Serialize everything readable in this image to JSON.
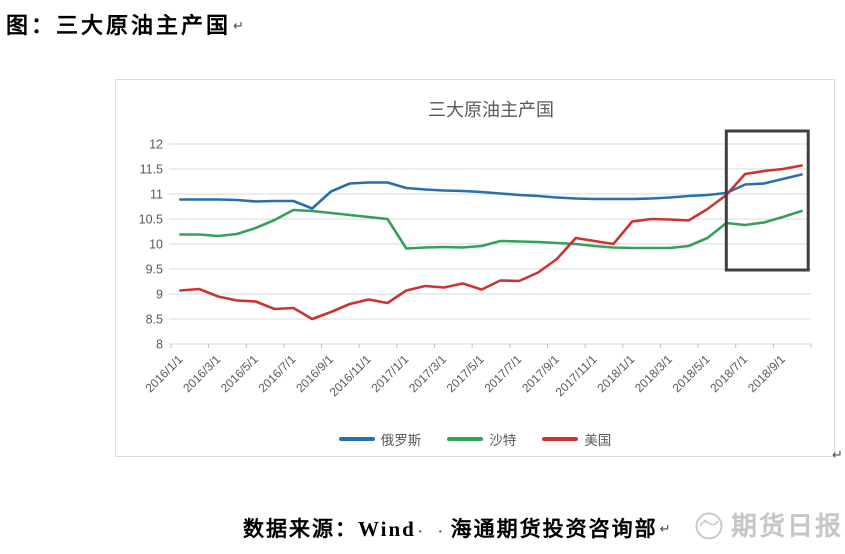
{
  "document": {
    "title": "图：三大原油主产国",
    "paragraph_mark": "↵",
    "source_prefix": "数据来源：Wind",
    "space_dots": "· ·",
    "source_suffix": "海通期货投资咨询部"
  },
  "watermark": {
    "name": "期货日报",
    "icon": "futures-daily-logo",
    "color": "#c6c6c6"
  },
  "chart_data": {
    "type": "line",
    "title": "三大原油主产国",
    "title_color": "#595959",
    "grid": true,
    "grid_color": "#d9d9d9",
    "axis_text_color": "#595959",
    "legend_position": "bottom",
    "ylim": [
      8,
      12
    ],
    "y_ticks": [
      8,
      8.5,
      9,
      9.5,
      10,
      10.5,
      11,
      11.5,
      12
    ],
    "x": [
      "2016/1/1",
      "2016/2/1",
      "2016/3/1",
      "2016/4/1",
      "2016/5/1",
      "2016/6/1",
      "2016/7/1",
      "2016/8/1",
      "2016/9/1",
      "2016/10/1",
      "2016/11/1",
      "2016/12/1",
      "2017/1/1",
      "2017/2/1",
      "2017/3/1",
      "2017/4/1",
      "2017/5/1",
      "2017/6/1",
      "2017/7/1",
      "2017/8/1",
      "2017/9/1",
      "2017/10/1",
      "2017/11/1",
      "2017/12/1",
      "2018/1/1",
      "2018/2/1",
      "2018/3/1",
      "2018/4/1",
      "2018/5/1",
      "2018/6/1",
      "2018/7/1",
      "2018/8/1",
      "2018/9/1",
      "2018/10/1"
    ],
    "x_tick_labels": [
      "2016/1/1",
      "2016/3/1",
      "2016/5/1",
      "2016/7/1",
      "2016/9/1",
      "2016/11/1",
      "2017/1/1",
      "2017/3/1",
      "2017/5/1",
      "2017/7/1",
      "2017/9/1",
      "2017/11/1",
      "2018/1/1",
      "2018/3/1",
      "2018/5/1",
      "2018/7/1",
      "2018/9/1"
    ],
    "series": [
      {
        "key": "russia",
        "name": "俄罗斯",
        "color": "#2a6fac",
        "values": [
          10.89,
          10.89,
          10.89,
          10.88,
          10.85,
          10.86,
          10.86,
          10.71,
          11.05,
          11.21,
          11.23,
          11.23,
          11.12,
          11.09,
          11.07,
          11.06,
          11.04,
          11.01,
          10.98,
          10.96,
          10.93,
          10.91,
          10.9,
          10.9,
          10.9,
          10.91,
          10.93,
          10.96,
          10.98,
          11.02,
          11.19,
          11.21,
          11.3,
          11.39
        ]
      },
      {
        "key": "saudi",
        "name": "沙特",
        "color": "#33a157",
        "values": [
          10.19,
          10.19,
          10.16,
          10.2,
          10.32,
          10.48,
          10.68,
          10.66,
          10.62,
          10.58,
          10.54,
          10.5,
          9.91,
          9.93,
          9.94,
          9.93,
          9.96,
          10.06,
          10.05,
          10.04,
          10.02,
          10.0,
          9.96,
          9.93,
          9.92,
          9.92,
          9.92,
          9.96,
          10.12,
          10.42,
          10.38,
          10.43,
          10.54,
          10.66
        ]
      },
      {
        "key": "usa",
        "name": "美国",
        "color": "#cb3335",
        "values": [
          9.07,
          9.1,
          8.95,
          8.87,
          8.85,
          8.7,
          8.72,
          8.5,
          8.64,
          8.8,
          8.89,
          8.82,
          9.07,
          9.16,
          9.13,
          9.21,
          9.09,
          9.27,
          9.26,
          9.43,
          9.7,
          10.12,
          10.06,
          10.0,
          10.45,
          10.5,
          10.49,
          10.47,
          10.7,
          10.98,
          11.4,
          11.46,
          11.5,
          11.57
        ]
      }
    ],
    "annotation_box": {
      "x_start_index": 29.0,
      "x_end_index": 33.35,
      "y_min": 9.48,
      "y_max": 12.26,
      "color": "#3f3f3f"
    }
  }
}
